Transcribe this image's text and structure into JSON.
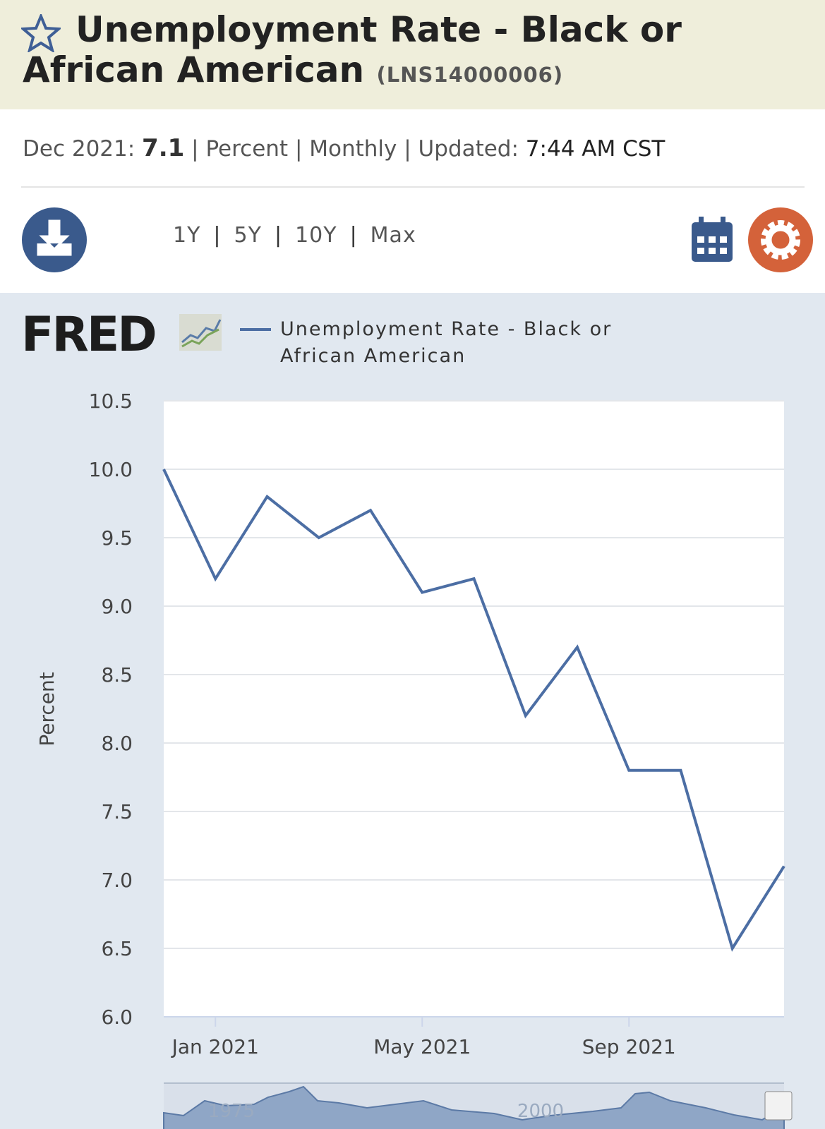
{
  "header": {
    "title": "Unemployment Rate - Black or African American",
    "series_id": "(LNS14000006)"
  },
  "meta": {
    "date": "Dec 2021:",
    "value": "7.1",
    "units": "Percent",
    "frequency": "Monthly",
    "updated_label": "Updated:",
    "updated_time": "7:44 AM CST"
  },
  "ranges": [
    "1Y",
    "5Y",
    "10Y",
    "Max"
  ],
  "logo": "FRED",
  "navigator": {
    "labels": [
      "1975",
      "2000"
    ]
  },
  "chart_data": {
    "type": "line",
    "y_label": "Percent",
    "categories": [
      null,
      "Jan 2021",
      null,
      null,
      null,
      "May 2021",
      null,
      null,
      null,
      "Sep 2021",
      null,
      null,
      null
    ],
    "series": [
      {
        "name": "Unemployment Rate - Black or African American",
        "color": "#4c6ea4",
        "values": [
          10.0,
          9.2,
          9.8,
          9.5,
          9.7,
          9.1,
          9.2,
          8.2,
          8.7,
          7.8,
          7.8,
          6.5,
          7.1
        ]
      }
    ],
    "ylim": [
      6.0,
      10.5
    ],
    "yticks": [
      {
        "value": 6.0,
        "label": "6.0"
      },
      6.5,
      {
        "value": 7.0,
        "label": "7.0"
      },
      7.5,
      {
        "value": 8.0,
        "label": "8.0"
      },
      8.5,
      {
        "value": 9.0,
        "label": "9.0"
      },
      9.5,
      {
        "value": 10.0,
        "label": "10.0"
      },
      10.5
    ],
    "grid": true
  }
}
